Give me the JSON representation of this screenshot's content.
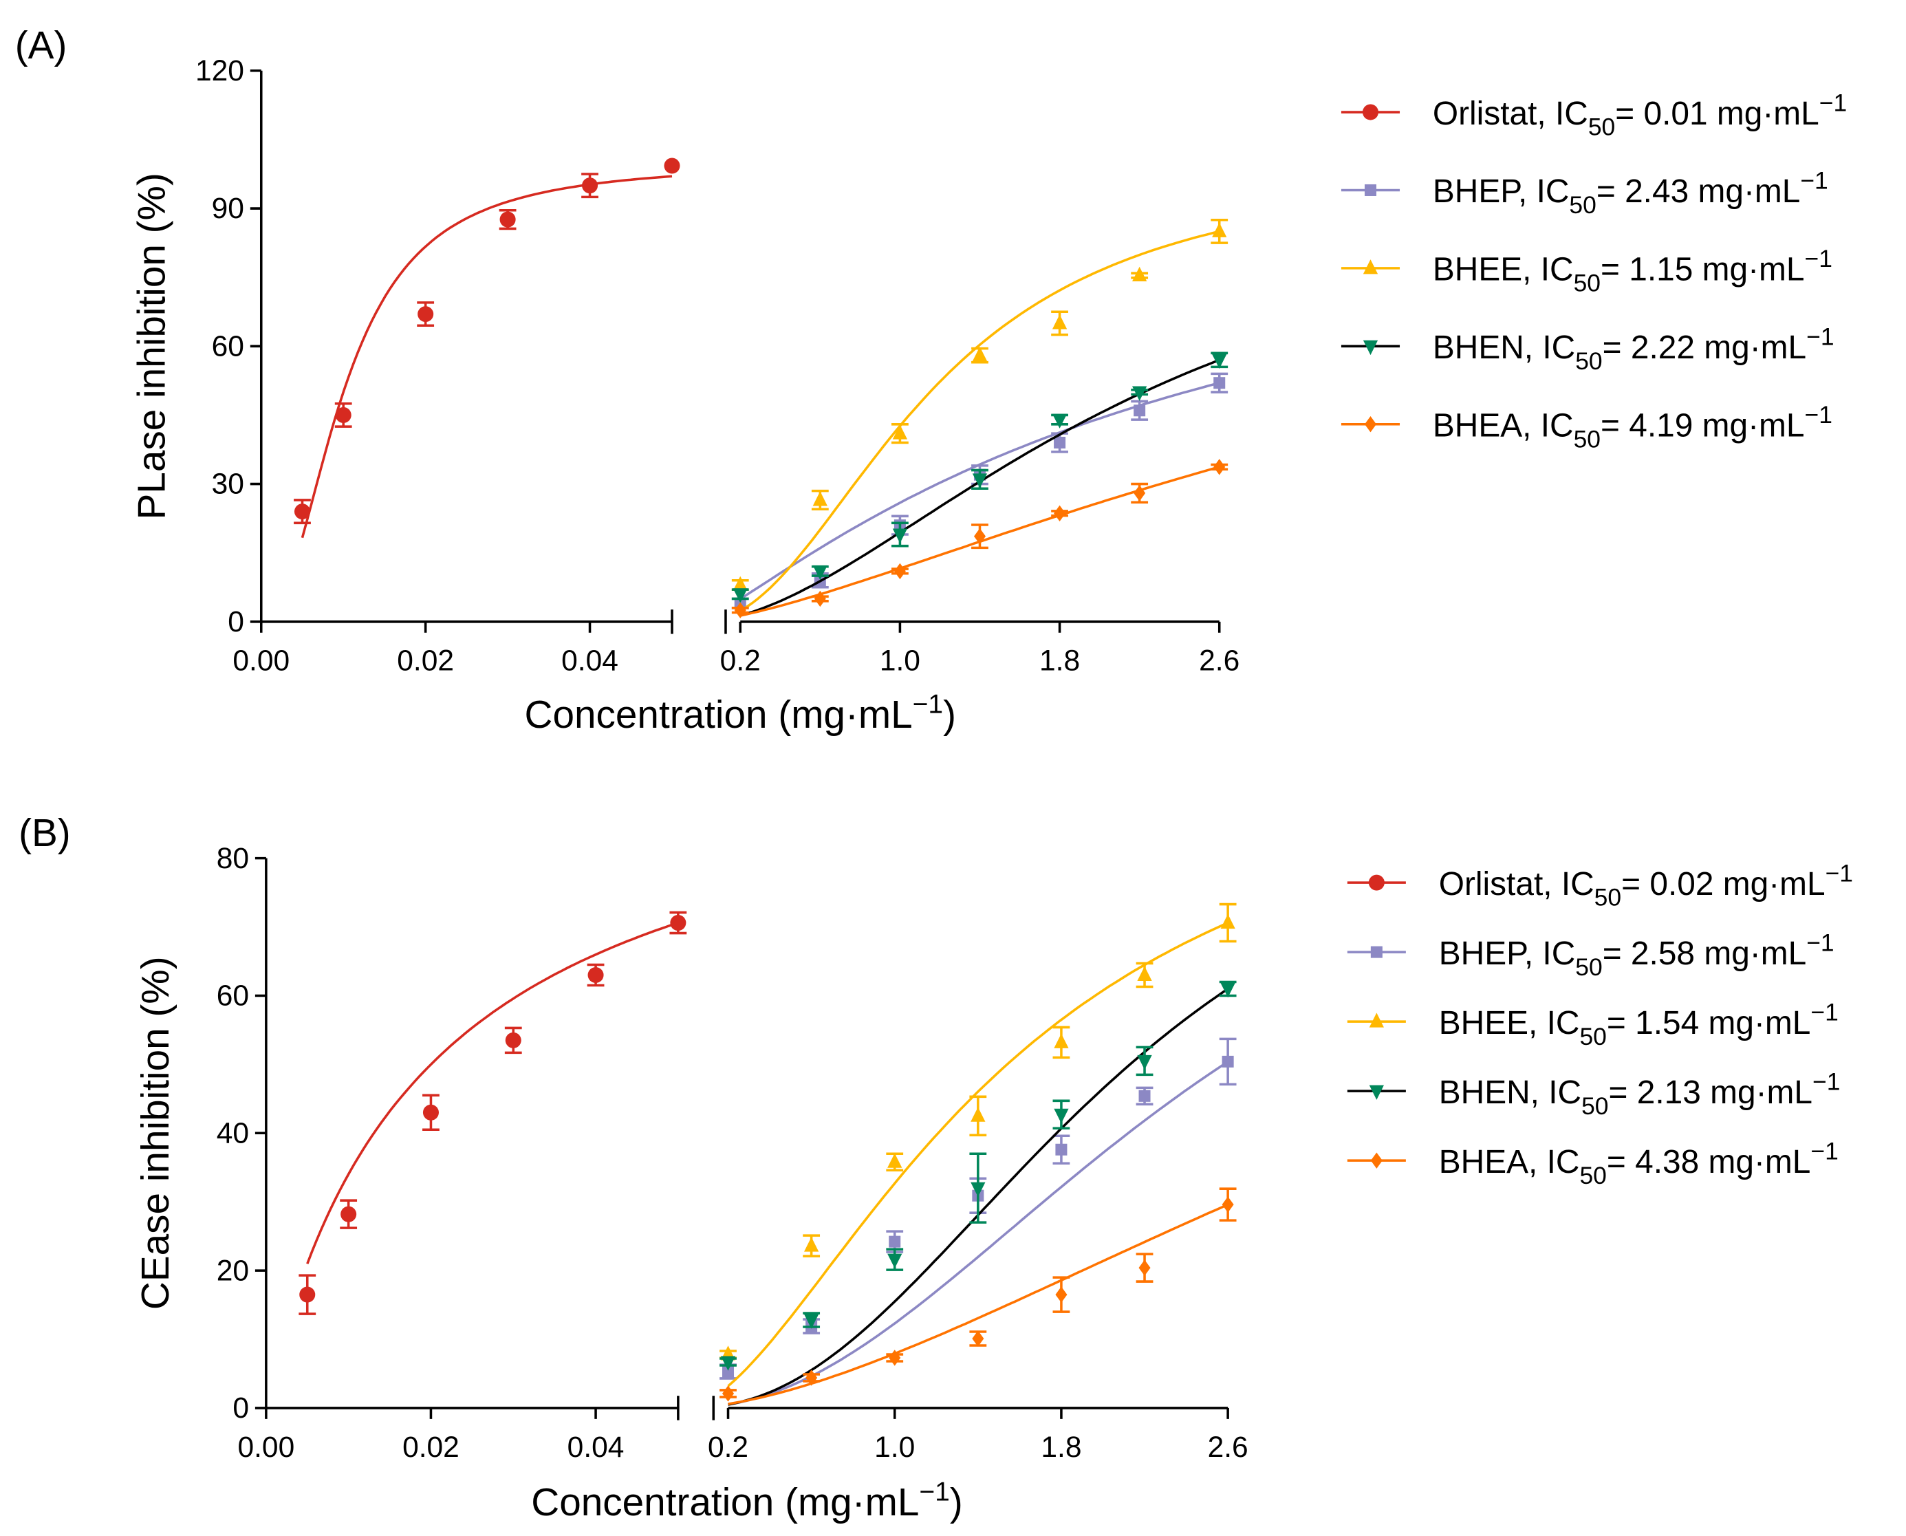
{
  "chart_data": [
    {
      "type": "scatter",
      "panel_label": "(A)",
      "ylabel": "PLase inhibition (%)",
      "xlabel": "Concentration (mg·mL⁻¹)",
      "ylim": [
        0,
        120
      ],
      "yticks": [
        "0",
        "30",
        "60",
        "90",
        "120"
      ],
      "x_segments": [
        {
          "range": [
            0,
            0.05
          ],
          "ticks": [
            "0.00",
            "0.02",
            "0.04"
          ],
          "tick_values": [
            0,
            0.02,
            0.04
          ]
        },
        {
          "range": [
            0.2,
            2.6
          ],
          "ticks": [
            "0.2",
            "1.0",
            "1.8",
            "2.6"
          ],
          "tick_values": [
            0.2,
            1.0,
            1.8,
            2.6
          ]
        }
      ],
      "legend_position": "right",
      "series": [
        {
          "name": "Orlistat",
          "ic50_label": "0.01",
          "ic50": 0.01,
          "color": "#d62a20",
          "line_color": "#d62a20",
          "marker": "circle",
          "segment": 0,
          "x": [
            0.005,
            0.01,
            0.02,
            0.03,
            0.04,
            0.05
          ],
          "y": [
            24,
            45,
            67,
            87.6,
            95,
            99.3
          ],
          "err": [
            2.5,
            2.5,
            2.5,
            2,
            2.5,
            0
          ]
        },
        {
          "name": "BHEP",
          "ic50_label": "2.43",
          "ic50": 2.43,
          "color": "#8c88c4",
          "line_color": "#8c88c4",
          "marker": "square",
          "segment": 1,
          "x": [
            0.2,
            0.6,
            1.0,
            1.4,
            1.8,
            2.2,
            2.6
          ],
          "y": [
            4,
            9,
            21,
            32,
            39,
            46,
            52
          ],
          "err": [
            1,
            1.5,
            2,
            2,
            2,
            2,
            2
          ]
        },
        {
          "name": "BHEE",
          "ic50_label": "1.15",
          "ic50": 1.15,
          "color": "#ffb800",
          "line_color": "#ffb800",
          "marker": "triangle-up",
          "segment": 1,
          "x": [
            0.2,
            0.6,
            1.0,
            1.4,
            1.8,
            2.2,
            2.6
          ],
          "y": [
            8,
            26.5,
            41,
            58,
            65,
            75.4,
            85
          ],
          "err": [
            1,
            2,
            2,
            1.5,
            2.5,
            0.5,
            2.5
          ]
        },
        {
          "name": "BHEN",
          "ic50_label": "2.22",
          "ic50": 2.22,
          "color": "#00875a",
          "line_color": "#000000",
          "marker": "triangle-down",
          "segment": 1,
          "x": [
            0.2,
            0.6,
            1.0,
            1.4,
            1.8,
            2.2,
            2.6
          ],
          "y": [
            6,
            11,
            19,
            31,
            44,
            50,
            57
          ],
          "err": [
            1,
            1,
            2.5,
            2,
            1,
            0.5,
            1.5
          ]
        },
        {
          "name": "BHEA",
          "ic50_label": "4.19",
          "ic50": 4.19,
          "color": "#ff7300",
          "line_color": "#ff7300",
          "marker": "diamond",
          "segment": 1,
          "x": [
            0.2,
            0.6,
            1.0,
            1.4,
            1.8,
            2.2,
            2.6
          ],
          "y": [
            2.5,
            5,
            11,
            18.6,
            23.6,
            28,
            33.7
          ],
          "err": [
            0.5,
            0.5,
            0.5,
            2.5,
            0.5,
            2,
            0.5
          ]
        }
      ]
    },
    {
      "type": "scatter",
      "panel_label": "(B)",
      "ylabel": "CEase inhibition (%)",
      "xlabel": "Concentration (mg·mL⁻¹)",
      "ylim": [
        0,
        80
      ],
      "yticks": [
        "0",
        "20",
        "40",
        "60",
        "80"
      ],
      "x_segments": [
        {
          "range": [
            0,
            0.05
          ],
          "ticks": [
            "0.00",
            "0.02",
            "0.04"
          ],
          "tick_values": [
            0,
            0.02,
            0.04
          ]
        },
        {
          "range": [
            0.2,
            2.6
          ],
          "ticks": [
            "0.2",
            "1.0",
            "1.8",
            "2.6"
          ],
          "tick_values": [
            0.2,
            1.0,
            1.8,
            2.6
          ]
        }
      ],
      "legend_position": "right",
      "series": [
        {
          "name": "Orlistat",
          "ic50_label": "0.02",
          "ic50": 0.02,
          "color": "#d62a20",
          "line_color": "#d62a20",
          "marker": "circle",
          "segment": 0,
          "x": [
            0.005,
            0.01,
            0.02,
            0.03,
            0.04,
            0.05
          ],
          "y": [
            16.5,
            28.2,
            43,
            53.5,
            63,
            70.6
          ],
          "err": [
            2.8,
            2,
            2.5,
            1.8,
            1.5,
            1.5
          ]
        },
        {
          "name": "BHEP",
          "ic50_label": "2.58",
          "ic50": 2.58,
          "color": "#8c88c4",
          "line_color": "#8c88c4",
          "marker": "square",
          "segment": 1,
          "x": [
            0.2,
            0.6,
            1.0,
            1.4,
            1.8,
            2.2,
            2.6
          ],
          "y": [
            5.3,
            11.9,
            24.2,
            30.9,
            37.6,
            45.4,
            50.4
          ],
          "err": [
            1,
            1,
            1.5,
            2.5,
            2,
            1.2,
            3.3
          ]
        },
        {
          "name": "BHEE",
          "ic50_label": "1.54",
          "ic50": 1.54,
          "color": "#ffb800",
          "line_color": "#ffb800",
          "marker": "triangle-up",
          "segment": 1,
          "x": [
            0.2,
            0.6,
            1.0,
            1.4,
            1.8,
            2.2,
            2.6
          ],
          "y": [
            7.8,
            23.6,
            35.8,
            42.5,
            53.2,
            63,
            70.6
          ],
          "err": [
            0.5,
            1.5,
            1.2,
            2.8,
            2.2,
            1.7,
            2.7
          ]
        },
        {
          "name": "BHEN",
          "ic50_label": "2.13",
          "ic50": 2.13,
          "color": "#00875a",
          "line_color": "#000000",
          "marker": "triangle-down",
          "segment": 1,
          "x": [
            0.2,
            0.6,
            1.0,
            1.4,
            1.8,
            2.2,
            2.6
          ],
          "y": [
            6.7,
            12.8,
            21.6,
            32,
            42.7,
            50.5,
            61
          ],
          "err": [
            0.5,
            1,
            1.5,
            5,
            2,
            2,
            1
          ]
        },
        {
          "name": "BHEA",
          "ic50_label": "4.38",
          "ic50": 4.38,
          "color": "#ff7300",
          "line_color": "#ff7300",
          "marker": "diamond",
          "segment": 1,
          "x": [
            0.2,
            0.6,
            1.0,
            1.4,
            1.8,
            2.2,
            2.6
          ],
          "y": [
            2.1,
            4.4,
            7.3,
            10.1,
            16.5,
            20.4,
            29.6
          ],
          "err": [
            0.5,
            0.5,
            0.5,
            1,
            2.5,
            2,
            2.3
          ]
        }
      ]
    }
  ],
  "legend_text": {
    "ic50_prefix": ", IC",
    "ic50_sub": "50",
    "ic50_eq": "= ",
    "unit": " mg·mL",
    "unit_sup": "−1"
  }
}
